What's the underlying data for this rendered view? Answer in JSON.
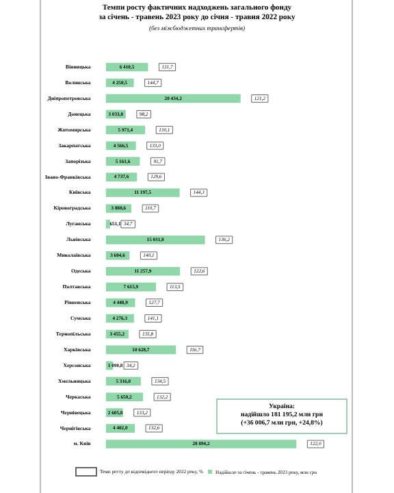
{
  "chart_data": {
    "type": "bar",
    "orientation": "horizontal",
    "title": "Темпи росту фактичних надходжень загального фонду\nза січень - травень 2023 року до січня - травня 2022 року",
    "subtitle": "(без міжбюджетних трансфертів)",
    "categories": [
      "Вінницька",
      "Волинська",
      "Дніпропетровська",
      "Донецька",
      "Житомирська",
      "Закарпатська",
      "Запорізька",
      "Івано-Франківська",
      "Київська",
      "Кіровоградська",
      "Луганська",
      "Львівська",
      "Миколаївська",
      "Одеська",
      "Полтавська",
      "Рівненська",
      "Сумська",
      "Тернопільська",
      "Харківська",
      "Херсонська",
      "Хмельницька",
      "Черкаська",
      "Чернівецька",
      "Чернігівська",
      "м. Київ"
    ],
    "series": [
      {
        "name": "Надійшло за січень - травень 2023 року, млн грн",
        "color": "#8fd6a8",
        "values": [
          6410.5,
          4250.5,
          20434.2,
          3033.8,
          5971.4,
          4566.5,
          5161.6,
          4737.6,
          11197.5,
          3888.6,
          651.1,
          15031.8,
          3604.6,
          11257.9,
          7615.9,
          4448.9,
          4276.3,
          3455.2,
          10628.7,
          1090.8,
          5316.0,
          5650.2,
          2605.8,
          4402.0,
          28894.2
        ],
        "value_labels": [
          "6 410,5",
          "4 250,5",
          "20 434,2",
          "3 033,8",
          "5 971,4",
          "4 566,5",
          "5 161,6",
          "4 737,6",
          "11 197,5",
          "3 888,6",
          "651,1",
          "15 031,8",
          "3 604,6",
          "11 257,9",
          "7 615,9",
          "4 448,9",
          "4 276,3",
          "3 455,2",
          "10 628,7",
          "1 090,8",
          "5 316,0",
          "5 650,2",
          "2 605,8",
          "4 402,0",
          "28 894,2"
        ]
      }
    ],
    "legend": "bottom",
    "annotations": [
      "Україна:\nнадійшло 181 195,2 млн грн\n(+36 006,7 млн грн, +24,8%)",
      "Темп росту до відповідного періоду 2022 року, %",
      {
        "text": "131,7",
        "x": 6410.5,
        "y": "Вінницька"
      },
      {
        "text": "144,7",
        "x": 4250.5,
        "y": "Волинська"
      },
      {
        "text": "121,2",
        "x": 20434.2,
        "y": "Дніпропетровська"
      },
      {
        "text": "98,2",
        "x": 3033.8,
        "y": "Донецька"
      },
      {
        "text": "130,1",
        "x": 5971.4,
        "y": "Житомирська"
      },
      {
        "text": "133,0",
        "x": 4566.5,
        "y": "Закарпатська"
      },
      {
        "text": "91,7",
        "x": 5161.6,
        "y": "Запорізька"
      },
      {
        "text": "129,6",
        "x": 4737.6,
        "y": "Івано-Франківська"
      },
      {
        "text": "144,3",
        "x": 11197.5,
        "y": "Київська"
      },
      {
        "text": "110,7",
        "x": 3888.6,
        "y": "Кіровоградська"
      },
      {
        "text": "34,7",
        "x": 651.1,
        "y": "Луганська"
      },
      {
        "text": "136,2",
        "x": 15031.8,
        "y": "Львівська"
      },
      {
        "text": "140,1",
        "x": 3604.6,
        "y": "Миколаївська"
      },
      {
        "text": "122,6",
        "x": 11257.9,
        "y": "Одеська"
      },
      {
        "text": "113,5",
        "x": 7615.9,
        "y": "Полтавська"
      },
      {
        "text": "127,7",
        "x": 4448.9,
        "y": "Рівненська"
      },
      {
        "text": "141,1",
        "x": 4276.3,
        "y": "Сумська"
      },
      {
        "text": "135,8",
        "x": 3455.2,
        "y": "Тернопільська"
      },
      {
        "text": "116,7",
        "x": 10628.7,
        "y": "Харківська"
      },
      {
        "text": "34,2",
        "x": 1090.8,
        "y": "Херсонська"
      },
      {
        "text": "134,5",
        "x": 5316.0,
        "y": "Хмельницька"
      },
      {
        "text": "132,2",
        "x": 5650.2,
        "y": "Черкаська"
      },
      {
        "text": "133,2",
        "x": 2605.8,
        "y": "Чернівецька"
      },
      {
        "text": "132,6",
        "x": 4402.0,
        "y": "Чернігівська"
      },
      {
        "text": "122,0",
        "x": 28894.2,
        "y": "м. Київ"
      }
    ]
  }
}
